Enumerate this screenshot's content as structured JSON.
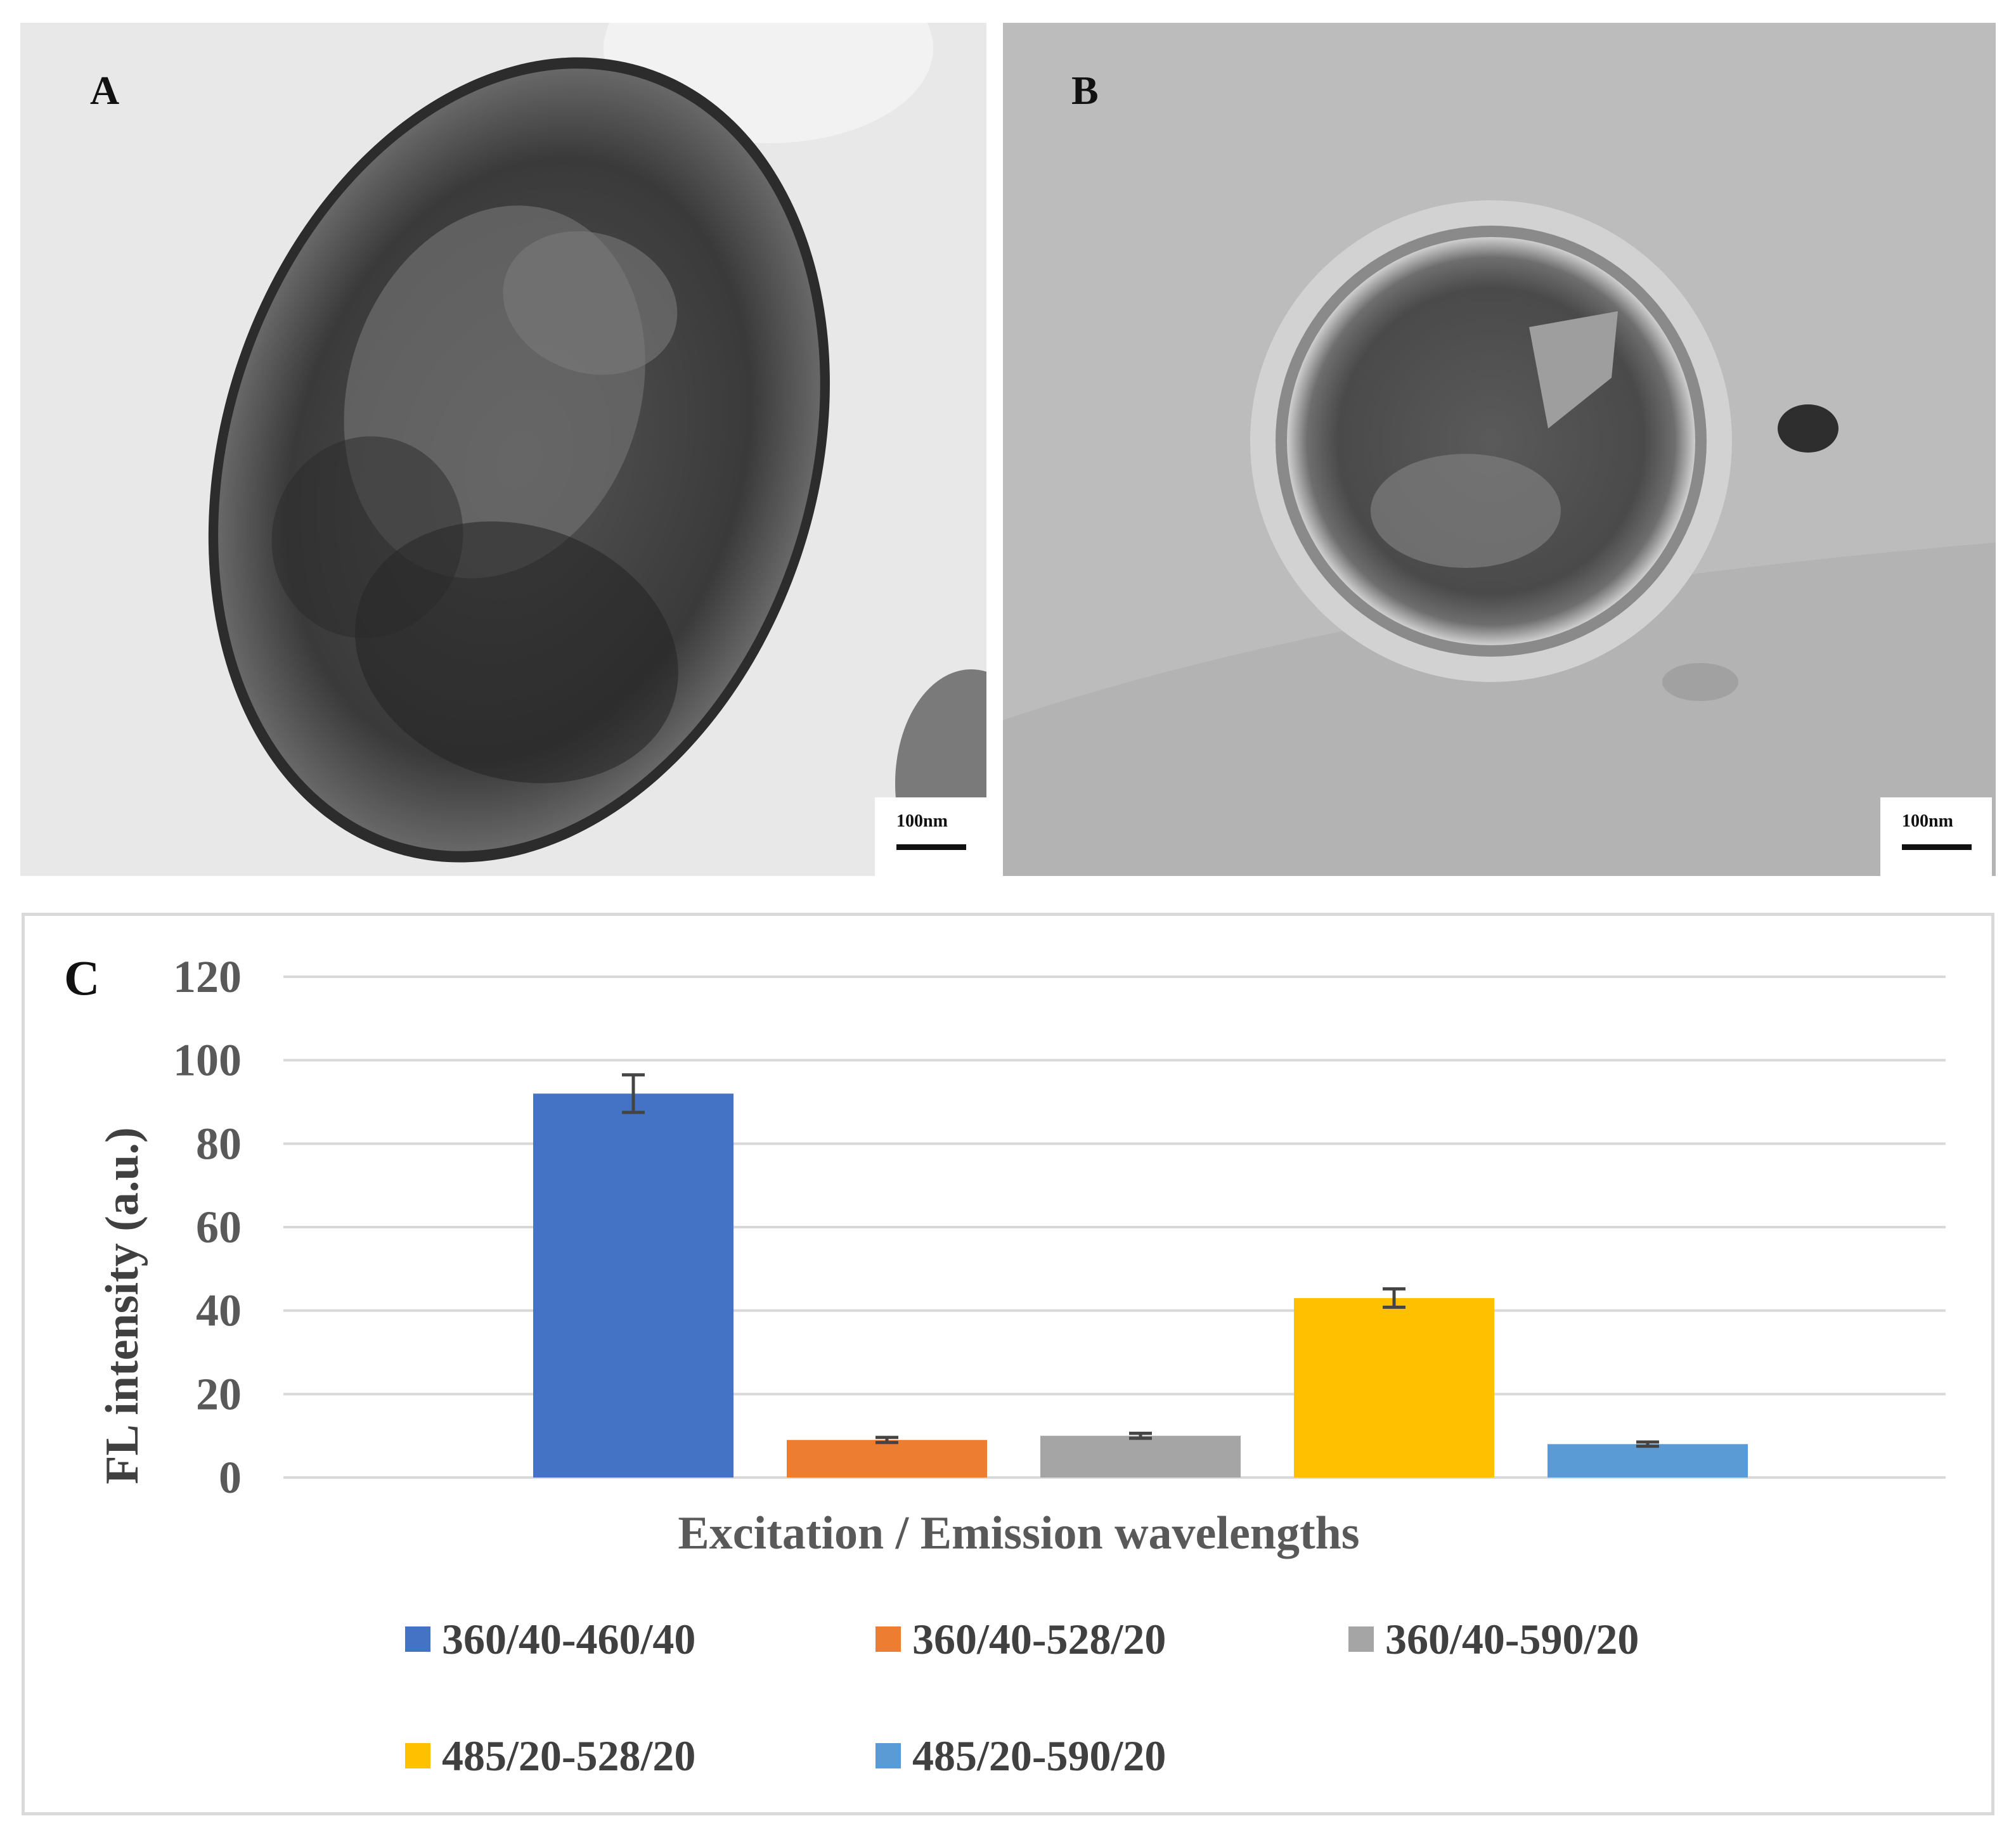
{
  "panels": {
    "a": {
      "letter": "A",
      "scale_label": "100nm"
    },
    "b": {
      "letter": "B",
      "scale_label": "100nm"
    },
    "c": {
      "letter": "C"
    }
  },
  "chart_data": {
    "type": "bar",
    "xlabel": "Excitation / Emission wavelengths",
    "ylabel": "FL intensity (a.u.)",
    "ylim": [
      0,
      120
    ],
    "yticks": [
      0,
      20,
      40,
      60,
      80,
      100,
      120
    ],
    "grid": true,
    "legend_placement": "bottom",
    "series": [
      {
        "name": "360/40-460/40",
        "value": 92,
        "error": 4.5,
        "color": "#4472C4"
      },
      {
        "name": "360/40-528/20",
        "value": 9,
        "error": 0.6,
        "color": "#ED7D31"
      },
      {
        "name": "360/40-590/20",
        "value": 10,
        "error": 0.6,
        "color": "#A5A5A5"
      },
      {
        "name": "485/20-528/20",
        "value": 43,
        "error": 2.2,
        "color": "#FFC000"
      },
      {
        "name": "485/20-590/20",
        "value": 8,
        "error": 0.5,
        "color": "#5B9BD5"
      }
    ]
  }
}
